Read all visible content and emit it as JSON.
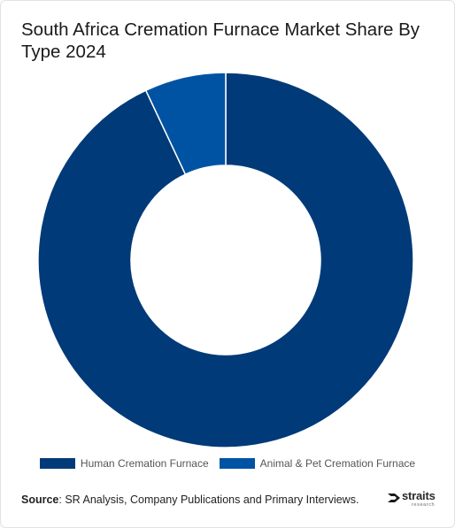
{
  "title": "South Africa Cremation Furnace Market Share By Type 2024",
  "chart_data": {
    "type": "pie",
    "variant": "donut",
    "title": "South Africa Cremation Furnace Market Share By Type 2024",
    "categories": [
      "Human Cremation Furnace",
      "Animal & Pet Cremation Furnace"
    ],
    "values": [
      93,
      7
    ],
    "colors": [
      "#003a78",
      "#0053a3"
    ],
    "legend": "bottom",
    "start_angle": "top"
  },
  "source": {
    "label": "Source",
    "text": ": SR Analysis, Company Publications and Primary Interviews."
  },
  "brand": {
    "name": "straits",
    "sub": "research"
  }
}
